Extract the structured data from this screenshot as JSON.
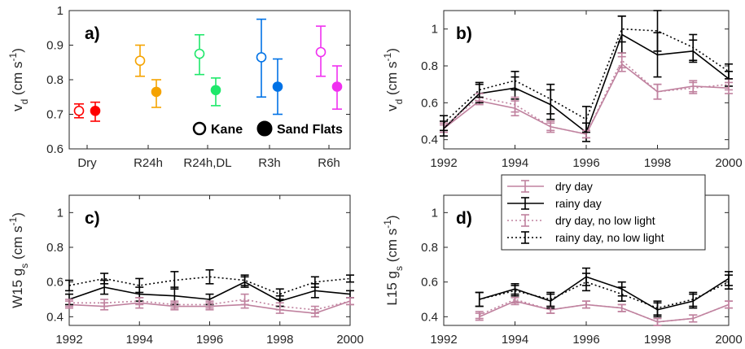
{
  "chart_data": [
    {
      "panel": "a)",
      "type": "scatter",
      "ylabel": "v",
      "ylabel_sub": "d",
      "ylabel_unit": " (cm s",
      "ylabel_sup": "-1",
      "ylabel_close": ")",
      "ylim": [
        0.6,
        1.0
      ],
      "yticks": [
        0.6,
        0.7,
        0.8,
        0.9,
        1
      ],
      "ytick_labels": [
        "0.6",
        "0.7",
        "0.8",
        "0.9",
        "1"
      ],
      "categories": [
        "Dry",
        "R24h",
        "R24h,DL",
        "R3h",
        "R6h"
      ],
      "colors": [
        "#ff0000",
        "#f5a300",
        "#1ee86a",
        "#0072e6",
        "#f030f0"
      ],
      "series": [
        {
          "name": "Kane",
          "marker": "open",
          "values": [
            0.71,
            0.855,
            0.875,
            0.865,
            0.88
          ],
          "lower": [
            0.69,
            0.81,
            0.815,
            0.75,
            0.81
          ],
          "upper": [
            0.73,
            0.9,
            0.93,
            0.975,
            0.955
          ]
        },
        {
          "name": "Sand Flats",
          "marker": "filled",
          "values": [
            0.71,
            0.765,
            0.77,
            0.78,
            0.78
          ],
          "lower": [
            0.68,
            0.72,
            0.725,
            0.7,
            0.715
          ],
          "upper": [
            0.735,
            0.8,
            0.805,
            0.86,
            0.84
          ]
        }
      ],
      "legend_position": "bottom-right"
    },
    {
      "panel": "b)",
      "type": "line",
      "ylabel": "v",
      "ylabel_sub": "d",
      "ylabel_unit": " (cm s",
      "ylabel_sup": "-1",
      "ylabel_close": ")",
      "ylim": [
        0.35,
        1.1
      ],
      "yticks": [
        0.4,
        0.6,
        0.8,
        1
      ],
      "ytick_labels": [
        "0.4",
        "0.6",
        "0.8",
        "1"
      ],
      "x": [
        1992,
        1993,
        1994,
        1995,
        1996,
        1997,
        1998,
        1999,
        2000
      ],
      "xlim": [
        1992,
        2000
      ],
      "xticks": [
        1992,
        1994,
        1996,
        1998,
        2000
      ],
      "series": [
        {
          "name": "dry day",
          "values": [
            0.46,
            0.61,
            0.57,
            0.47,
            0.43,
            0.81,
            0.66,
            0.69,
            0.68
          ],
          "err": [
            0.02,
            0.02,
            0.04,
            0.03,
            0.02,
            0.04,
            0.04,
            0.03,
            0.03
          ]
        },
        {
          "name": "rainy day",
          "values": [
            0.46,
            0.65,
            0.68,
            0.59,
            0.44,
            0.97,
            0.86,
            0.88,
            0.73
          ],
          "err": [
            0.04,
            0.05,
            0.06,
            0.08,
            0.05,
            0.1,
            0.12,
            0.06,
            0.04
          ]
        },
        {
          "name": "dry day, no low light",
          "values": [
            0.47,
            0.63,
            0.59,
            0.47,
            0.43,
            0.83,
            0.66,
            0.68,
            0.7
          ],
          "err": [
            0.02,
            0.02,
            0.04,
            0.02,
            0.02,
            0.04,
            0.04,
            0.03,
            0.03
          ]
        },
        {
          "name": "rainy day, no low light",
          "values": [
            0.49,
            0.67,
            0.72,
            0.62,
            0.51,
            1.0,
            0.99,
            0.9,
            0.77
          ],
          "err": [
            0.04,
            0.04,
            0.05,
            0.08,
            0.07,
            0.07,
            0.11,
            0.07,
            0.04
          ]
        }
      ]
    },
    {
      "panel": "c)",
      "type": "line",
      "ylabel": "W15 g",
      "ylabel_sub": "s",
      "ylabel_unit": " (cm s",
      "ylabel_sup": "-1",
      "ylabel_close": ")",
      "ylim": [
        0.35,
        1.1
      ],
      "yticks": [
        0.4,
        0.6,
        0.8,
        1
      ],
      "ytick_labels": [
        "0.4",
        "0.6",
        "0.8",
        "1"
      ],
      "x": [
        1992,
        1993,
        1994,
        1995,
        1996,
        1997,
        1998,
        1999,
        2000
      ],
      "xlim": [
        1992,
        2000
      ],
      "xticks": [
        1992,
        1994,
        1996,
        1998,
        2000
      ],
      "series": [
        {
          "name": "dry day",
          "values": [
            0.47,
            0.46,
            0.48,
            0.46,
            0.46,
            0.47,
            0.44,
            0.42,
            0.49
          ],
          "err": [
            0.02,
            0.02,
            0.03,
            0.02,
            0.02,
            0.02,
            0.02,
            0.02,
            0.02
          ]
        },
        {
          "name": "rainy day",
          "values": [
            0.5,
            0.57,
            0.53,
            0.52,
            0.5,
            0.6,
            0.49,
            0.55,
            0.53
          ],
          "err": [
            0.03,
            0.04,
            0.04,
            0.05,
            0.03,
            0.03,
            0.03,
            0.04,
            0.02
          ]
        },
        {
          "name": "dry day, no low light",
          "values": [
            0.48,
            0.48,
            0.49,
            0.47,
            0.47,
            0.5,
            0.46,
            0.44,
            0.49
          ],
          "err": [
            0.02,
            0.02,
            0.02,
            0.02,
            0.02,
            0.03,
            0.02,
            0.02,
            0.02
          ]
        },
        {
          "name": "rainy day, no low light",
          "values": [
            0.58,
            0.62,
            0.58,
            0.61,
            0.63,
            0.61,
            0.53,
            0.6,
            0.62
          ],
          "err": [
            0.03,
            0.03,
            0.04,
            0.05,
            0.04,
            0.03,
            0.03,
            0.03,
            0.02
          ]
        }
      ]
    },
    {
      "panel": "d)",
      "type": "line",
      "ylabel": "L15 g",
      "ylabel_sub": "s",
      "ylabel_unit": " (cm s",
      "ylabel_sup": "-1",
      "ylabel_close": ")",
      "ylim": [
        0.35,
        1.1
      ],
      "yticks": [
        0.4,
        0.6,
        0.8,
        1
      ],
      "ytick_labels": [
        "0.4",
        "0.6",
        "0.8",
        "1"
      ],
      "x": [
        1993,
        1994,
        1995,
        1996,
        1997,
        1998,
        1999,
        2000
      ],
      "xlim": [
        1992,
        2000
      ],
      "xticks": [
        1992,
        1994,
        1996,
        1998,
        2000
      ],
      "series": [
        {
          "name": "dry day",
          "values": [
            0.4,
            0.49,
            0.44,
            0.47,
            0.45,
            0.37,
            0.39,
            0.47
          ],
          "err": [
            0.02,
            0.02,
            0.02,
            0.02,
            0.02,
            0.02,
            0.02,
            0.02
          ]
        },
        {
          "name": "rainy day",
          "values": [
            0.5,
            0.56,
            0.49,
            0.63,
            0.56,
            0.44,
            0.49,
            0.62
          ],
          "err": [
            0.04,
            0.03,
            0.04,
            0.05,
            0.04,
            0.04,
            0.04,
            0.04
          ]
        },
        {
          "name": "dry day, no low light",
          "values": [
            0.41,
            0.5,
            0.44,
            0.47,
            0.45,
            0.37,
            0.39,
            0.47
          ],
          "err": [
            0.02,
            0.02,
            0.02,
            0.02,
            0.02,
            0.02,
            0.02,
            0.02
          ]
        },
        {
          "name": "rainy day, no low light",
          "values": [
            0.5,
            0.55,
            0.5,
            0.6,
            0.53,
            0.45,
            0.5,
            0.6
          ],
          "err": [
            0.04,
            0.03,
            0.04,
            0.05,
            0.04,
            0.04,
            0.04,
            0.04
          ]
        }
      ]
    }
  ],
  "styles": {
    "dry day": {
      "color": "#c0829f",
      "dash": "none"
    },
    "rainy day": {
      "color": "#000000",
      "dash": "none"
    },
    "dry day, no low light": {
      "color": "#c0829f",
      "dash": "2,3"
    },
    "rainy day, no low light": {
      "color": "#000000",
      "dash": "2,3"
    }
  },
  "legend_a": {
    "open_label": "Kane",
    "filled_label": "Sand Flats"
  },
  "legend_lines": [
    "dry day",
    "rainy day",
    "dry day, no low light",
    "rainy day, no low light"
  ]
}
